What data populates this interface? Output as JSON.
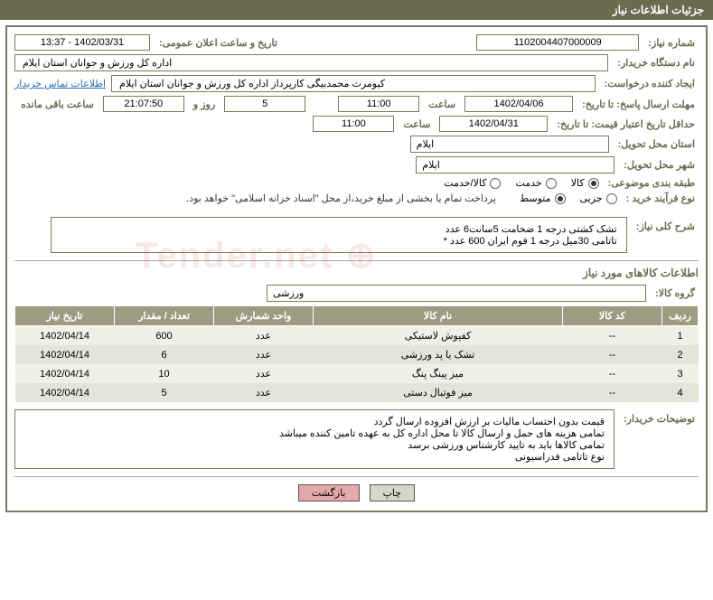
{
  "header": {
    "title": "جزئیات اطلاعات نیاز"
  },
  "fields": {
    "need_number": {
      "label": "شماره نیاز:",
      "value": "1102004407000009"
    },
    "announce_datetime": {
      "label": "تاریخ و ساعت اعلان عمومی:",
      "value": "1402/03/31 - 13:37"
    },
    "buyer_org": {
      "label": "نام دستگاه خریدار:",
      "value": "اداره کل ورزش و جوانان استان ایلام"
    },
    "requester": {
      "label": "ایجاد کننده درخواست:",
      "value": "کیومرث محمدبیگی کارپرداز اداره کل ورزش و جوانان استان ایلام"
    },
    "buyer_contact": {
      "link": "اطلاعات تماس خریدار"
    },
    "response_deadline": {
      "label": "مهلت ارسال پاسخ: تا تاریخ:",
      "date": "1402/04/06",
      "time_label": "ساعت",
      "time": "11:00",
      "days": "5",
      "days_label": "روز و",
      "countdown": "21:07:50",
      "remaining_label": "ساعت باقی مانده"
    },
    "price_validity": {
      "label": "حداقل تاریخ اعتبار قیمت: تا تاریخ:",
      "date": "1402/04/31",
      "time_label": "ساعت",
      "time": "11:00"
    },
    "delivery_province": {
      "label": "استان محل تحویل:",
      "value": "ایلام"
    },
    "delivery_city": {
      "label": "شهر محل تحویل:",
      "value": "ایلام"
    },
    "category": {
      "label": "طبقه بندی موضوعی:",
      "options": [
        {
          "label": "کالا",
          "selected": true
        },
        {
          "label": "خدمت",
          "selected": false
        },
        {
          "label": "کالا/خدمت",
          "selected": false
        }
      ]
    },
    "purchase_process": {
      "label": "نوع فرآیند خرید :",
      "options": [
        {
          "label": "جزیی",
          "selected": false
        },
        {
          "label": "متوسط",
          "selected": true
        }
      ],
      "note": "پرداخت تمام یا بخشی از مبلغ خرید،از محل \"اسناد خزانه اسلامی\" خواهد بود."
    },
    "need_desc": {
      "label": "شرح کلی نیاز:",
      "text": "تشک کشتی درجه 1 ضخامت 5سانت6 عدد\nتاتامی 30میل درجه 1 فوم ایران 600 عدد *"
    }
  },
  "goods_section": {
    "title": "اطلاعات کالاهای مورد نیاز",
    "group_label": "گروه کالا:",
    "group_value": "ورزشی"
  },
  "table": {
    "headers": [
      "ردیف",
      "کد کالا",
      "نام کالا",
      "واحد شمارش",
      "تعداد / مقدار",
      "تاریخ نیاز"
    ],
    "rows": [
      [
        "1",
        "--",
        "کفپوش لاستیکی",
        "عدد",
        "600",
        "1402/04/14"
      ],
      [
        "2",
        "--",
        "تشک یا پد ورزشی",
        "عدد",
        "6",
        "1402/04/14"
      ],
      [
        "3",
        "--",
        "میز پینگ پنگ",
        "عدد",
        "10",
        "1402/04/14"
      ],
      [
        "4",
        "--",
        "میز فوتبال دستی",
        "عدد",
        "5",
        "1402/04/14"
      ]
    ]
  },
  "buyer_notes": {
    "label": "توضیحات خریدار:",
    "text": "قیمت بدون احتساب مالیات بر ارزش افزوده ارسال گردد\nتمامی هزینه های حمل و ارسال کالا تا محل اداره کل به عهده تامین کننده میباشد\nتمامی کالاها باید به تایید کارشناس ورزشی برسد\nنوع تاتامی فدراسیونی"
  },
  "buttons": {
    "print": "چاپ",
    "back": "بازگشت"
  },
  "colors": {
    "header_bg": "#6b6b50",
    "table_header_bg": "#9c9c82",
    "row_odd": "#f0f0e8",
    "row_even": "#e4e4d8"
  }
}
